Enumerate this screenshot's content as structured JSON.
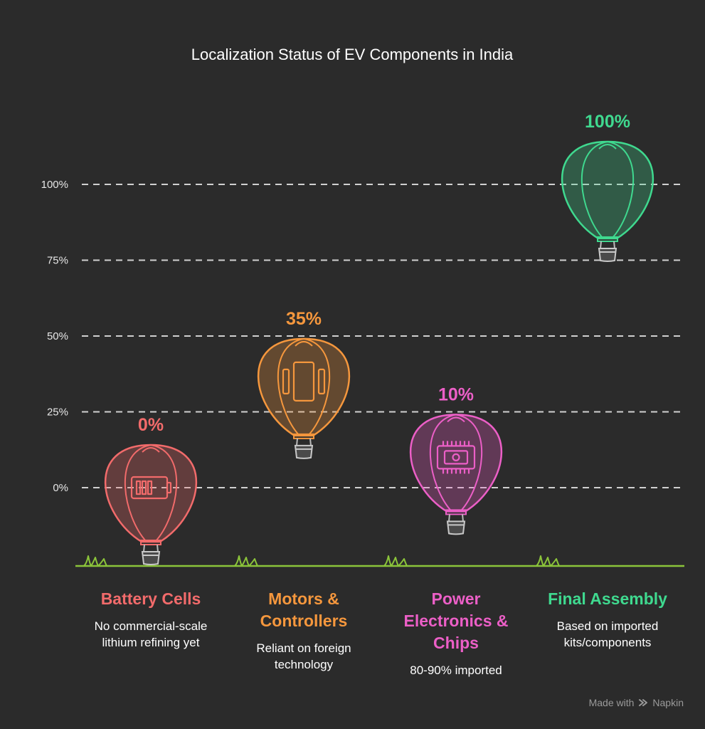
{
  "chart_data": {
    "type": "bar",
    "title": "Localization Status of EV Components in India",
    "y_ticks": [
      "100%",
      "75%",
      "50%",
      "25%",
      "0%"
    ],
    "y_tick_values": [
      100,
      75,
      50,
      25,
      0
    ],
    "ylim": [
      -25,
      112
    ],
    "grid": true,
    "categories": [
      {
        "name_lines": [
          "Battery Cells"
        ],
        "desc_lines": [
          "No commercial-scale",
          "lithium refining yet"
        ],
        "value": 0,
        "value_label": "0%",
        "color": "#f26b6b",
        "icon": "battery-icon"
      },
      {
        "name_lines": [
          "Motors &",
          "Controllers"
        ],
        "desc_lines": [
          "Reliant on foreign",
          "technology"
        ],
        "value": 35,
        "value_label": "35%",
        "color": "#f5973d",
        "icon": "motor-icon"
      },
      {
        "name_lines": [
          "Power",
          "Electronics &",
          "Chips"
        ],
        "desc_lines": [
          "80-90% imported"
        ],
        "value": 10,
        "value_label": "10%",
        "color": "#ec5fc7",
        "icon": "chip-icon"
      },
      {
        "name_lines": [
          "Final Assembly"
        ],
        "desc_lines": [
          "Based on imported",
          "kits/components"
        ],
        "value": 100,
        "value_label": "100%",
        "color": "#3fd98f",
        "icon": "none"
      }
    ]
  },
  "footer": {
    "made_with": "Made with",
    "brand": "Napkin"
  },
  "colors": {
    "background": "#2b2b2b",
    "ground": "#8bc43a",
    "grid": "#d0d0d0"
  }
}
